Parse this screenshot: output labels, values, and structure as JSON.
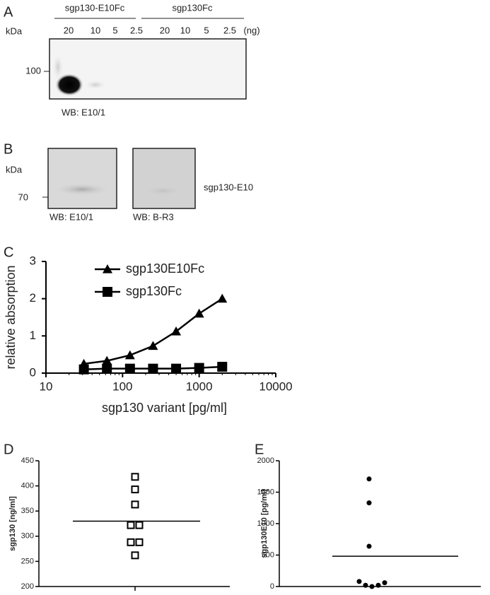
{
  "blot_a": {
    "label": "A",
    "unit": "kDa",
    "groups": [
      "sgp130-E10Fc",
      "sgp130Fc"
    ],
    "lanes": [
      "20",
      "10",
      "5",
      "2.5",
      "20",
      "10",
      "5",
      "2.5"
    ],
    "amount_unit": "(ng)",
    "marker": "100",
    "antibody": "WB: E10/1"
  },
  "blot_b": {
    "label": "B",
    "unit": "kDa",
    "marker": "70",
    "antibodies": [
      "WB: E10/1",
      "WB: B-R3"
    ],
    "band": "sgp130-E10"
  },
  "chart_data": [
    {
      "type": "line",
      "label": "C",
      "xlabel": "sgp130 variant [pg/ml]",
      "ylabel": "relative absorption",
      "x": [
        31.25,
        62.5,
        125,
        250,
        500,
        1000,
        2000
      ],
      "xscale": "log",
      "xlim": [
        10,
        10000
      ],
      "xticks": [
        10,
        100,
        1000,
        10000
      ],
      "ylim": [
        0,
        3
      ],
      "yticks": [
        0,
        1,
        2,
        3
      ],
      "series": [
        {
          "name": "sgp130E10Fc",
          "color": "#000000",
          "marker": "triangle",
          "values": [
            0.25,
            0.33,
            0.48,
            0.73,
            1.12,
            1.6,
            2.0
          ]
        },
        {
          "name": "sgp130Fc",
          "color": "#000000",
          "marker": "square",
          "values": [
            0.1,
            0.12,
            0.12,
            0.12,
            0.12,
            0.14,
            0.17
          ]
        }
      ],
      "legend": "upper-left"
    },
    {
      "type": "dot",
      "label": "D",
      "ylabel": "sgp130 [ng/ml]",
      "ylim": [
        200,
        450
      ],
      "yticks": [
        200,
        250,
        300,
        350,
        400,
        450
      ],
      "marker": "open-square",
      "color": "#000000",
      "values": [
        418,
        393,
        363,
        322,
        322,
        288,
        288,
        262
      ],
      "mean": 330
    },
    {
      "type": "dot",
      "label": "E",
      "ylabel": "sgp130E10 [pg/ml]",
      "ylim": [
        0,
        2000
      ],
      "yticks": [
        0,
        500,
        1000,
        1500,
        2000
      ],
      "marker": "filled-circle",
      "color": "#000000",
      "values": [
        1710,
        1330,
        640,
        80,
        20,
        0,
        20,
        60
      ],
      "mean": 482
    }
  ]
}
